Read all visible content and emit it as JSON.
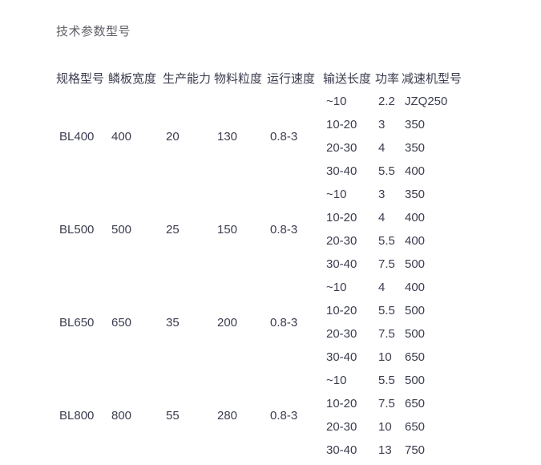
{
  "page": {
    "title": "技术参数型号"
  },
  "colors": {
    "background": "#ffffff",
    "title_text": "#5e5f66",
    "table_text": "#3b3d4f"
  },
  "table": {
    "headers": {
      "model": "规格型号",
      "plate_width": "鳞板宽度",
      "capacity": "生产能力",
      "particle_size": "物料粒度",
      "running_speed": "运行速度",
      "conveying_length": "输送长度",
      "power": "功率",
      "reducer_model": "减速机型号"
    },
    "models": [
      {
        "model": "BL400",
        "plate_width": "400",
        "capacity": "20",
        "particle_size": "130",
        "running_speed": "0.8-3",
        "rows": [
          {
            "length": "~10",
            "power": "2.2",
            "reducer": "JZQ250"
          },
          {
            "length": "10-20",
            "power": "3",
            "reducer": "350"
          },
          {
            "length": "20-30",
            "power": "4",
            "reducer": "350"
          },
          {
            "length": "30-40",
            "power": "5.5",
            "reducer": "400"
          }
        ]
      },
      {
        "model": "BL500",
        "plate_width": "500",
        "capacity": "25",
        "particle_size": "150",
        "running_speed": "0.8-3",
        "rows": [
          {
            "length": "~10",
            "power": "3",
            "reducer": "350"
          },
          {
            "length": "10-20",
            "power": "4",
            "reducer": "400"
          },
          {
            "length": "20-30",
            "power": "5.5",
            "reducer": "400"
          },
          {
            "length": "30-40",
            "power": "7.5",
            "reducer": "500"
          }
        ]
      },
      {
        "model": "BL650",
        "plate_width": "650",
        "capacity": "35",
        "particle_size": "200",
        "running_speed": "0.8-3",
        "rows": [
          {
            "length": "~10",
            "power": "4",
            "reducer": "400"
          },
          {
            "length": "10-20",
            "power": "5.5",
            "reducer": "500"
          },
          {
            "length": "20-30",
            "power": "7.5",
            "reducer": "500"
          },
          {
            "length": "30-40",
            "power": "10",
            "reducer": "650"
          }
        ]
      },
      {
        "model": "BL800",
        "plate_width": "800",
        "capacity": "55",
        "particle_size": "280",
        "running_speed": "0.8-3",
        "rows": [
          {
            "length": "~10",
            "power": "5.5",
            "reducer": "500"
          },
          {
            "length": "10-20",
            "power": "7.5",
            "reducer": "650"
          },
          {
            "length": "20-30",
            "power": "10",
            "reducer": "650"
          },
          {
            "length": "30-40",
            "power": "13",
            "reducer": "750"
          }
        ]
      }
    ]
  }
}
